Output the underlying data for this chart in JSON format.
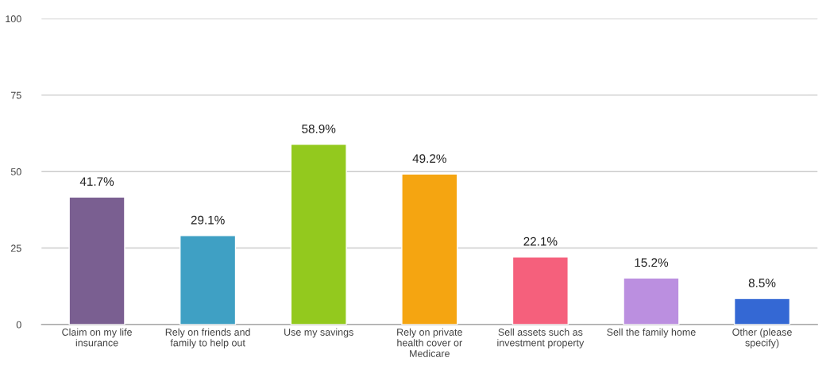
{
  "chart_data": {
    "type": "bar",
    "categories": [
      "Claim on my life insurance",
      "Rely on friends and family to help out",
      "Use my savings",
      "Rely on private health cover or Medicare",
      "Sell assets such as investment property",
      "Sell the family home",
      "Other (please specify)"
    ],
    "values": [
      41.7,
      29.1,
      58.9,
      49.2,
      22.1,
      15.2,
      8.5
    ],
    "colors": [
      "#7a5f91",
      "#3fa0c4",
      "#93c91e",
      "#f5a511",
      "#f5607c",
      "#bb8fe0",
      "#3468d4"
    ],
    "value_labels": [
      "41.7%",
      "29.1%",
      "58.9%",
      "49.2%",
      "22.1%",
      "15.2%",
      "8.5%"
    ],
    "ylim": [
      0,
      100
    ],
    "yticks": [
      0,
      25,
      50,
      75,
      100
    ],
    "grid": "y"
  }
}
